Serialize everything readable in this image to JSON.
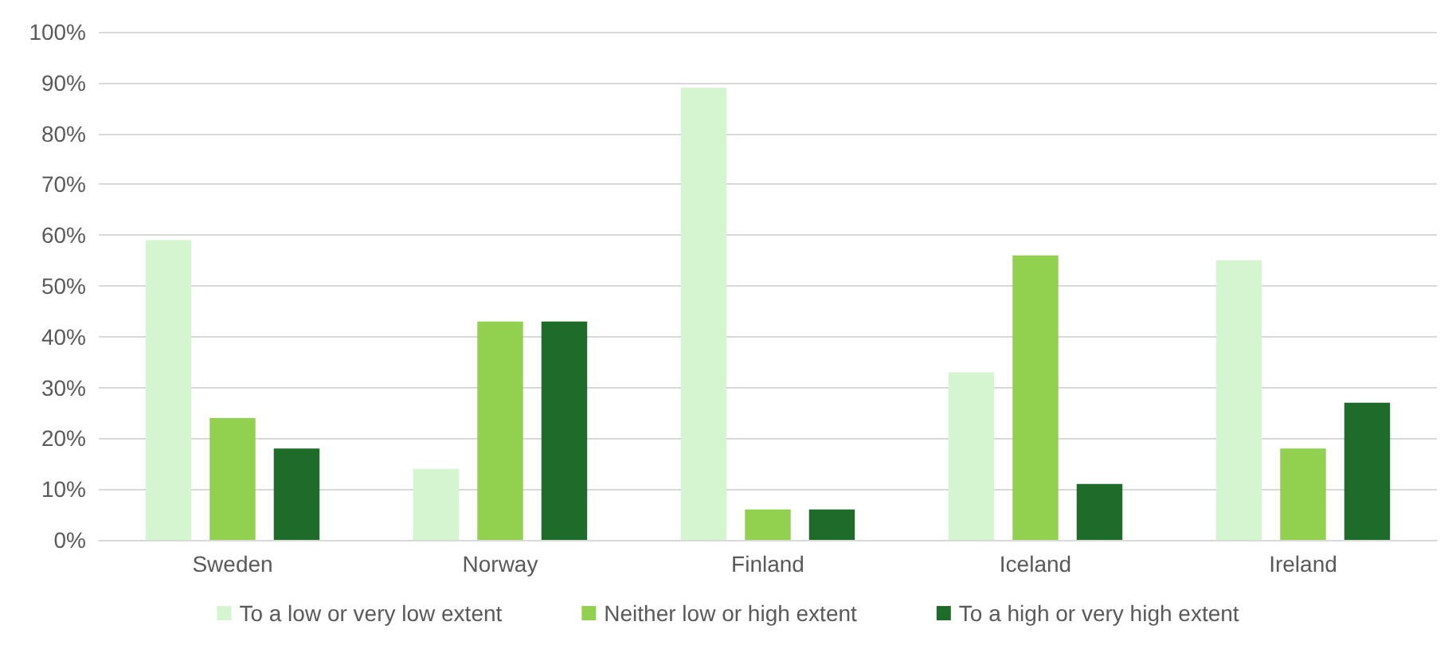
{
  "chart_data": {
    "type": "bar",
    "categories": [
      "Sweden",
      "Norway",
      "Finland",
      "Iceland",
      "Ireland"
    ],
    "series": [
      {
        "name": "To a low or very low extent",
        "color": "#d4f5d0",
        "values": [
          59,
          14,
          89,
          33,
          55
        ]
      },
      {
        "name": "Neither low or high extent",
        "color": "#92d050",
        "values": [
          24,
          43,
          6,
          56,
          18
        ]
      },
      {
        "name": "To a high or very high extent",
        "color": "#1e6b2a",
        "values": [
          18,
          43,
          6,
          11,
          27
        ]
      }
    ],
    "ylim": [
      0,
      100
    ],
    "yticks": [
      {
        "value": 0,
        "label": "0%"
      },
      {
        "value": 10,
        "label": "10%"
      },
      {
        "value": 20,
        "label": "20%"
      },
      {
        "value": 30,
        "label": "30%"
      },
      {
        "value": 40,
        "label": "40%"
      },
      {
        "value": 50,
        "label": "50%"
      },
      {
        "value": 60,
        "label": "60%"
      },
      {
        "value": 70,
        "label": "70%"
      },
      {
        "value": 80,
        "label": "80%"
      },
      {
        "value": 90,
        "label": "90%"
      },
      {
        "value": 100,
        "label": "100%"
      }
    ],
    "grid": "y",
    "legend": "bottom"
  }
}
